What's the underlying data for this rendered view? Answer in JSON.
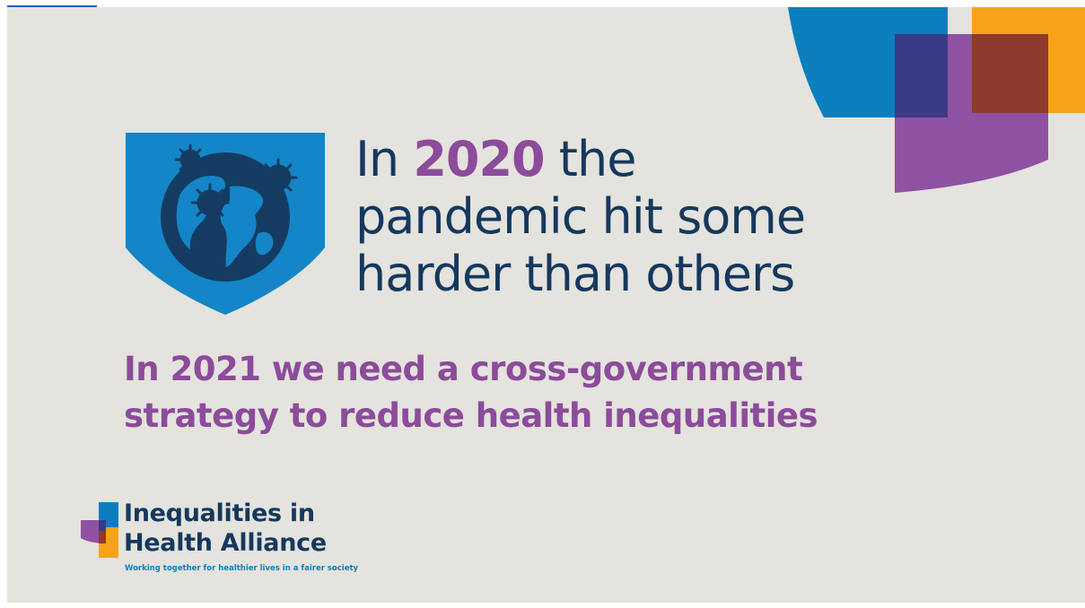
{
  "headline": {
    "line1_prefix": "In",
    "line1_year": "2020",
    "line1_suffix": "the",
    "line2": "pandemic hit some",
    "line3": "harder than others"
  },
  "subheadline": {
    "line1": "In 2021 we need a cross-government",
    "line2": "strategy to reduce health inequalities"
  },
  "logo": {
    "name_line1": "Inequalities in",
    "name_line2": "Health Alliance",
    "tagline": "Working together for healthier lives in a fairer society"
  },
  "icons": {
    "shield": "shield-globe-virus-icon",
    "logo_mark": "overlapping-squares-logo-icon",
    "corner": "overlapping-shapes-decoration-icon"
  },
  "colors": {
    "background": "#e4e3dd",
    "navy": "#15385e",
    "purple": "#8c4b9b",
    "blue": "#0b7fbd",
    "orange": "#f5a31b",
    "brown": "#8e3a2d",
    "indigo": "#3b3a84"
  }
}
